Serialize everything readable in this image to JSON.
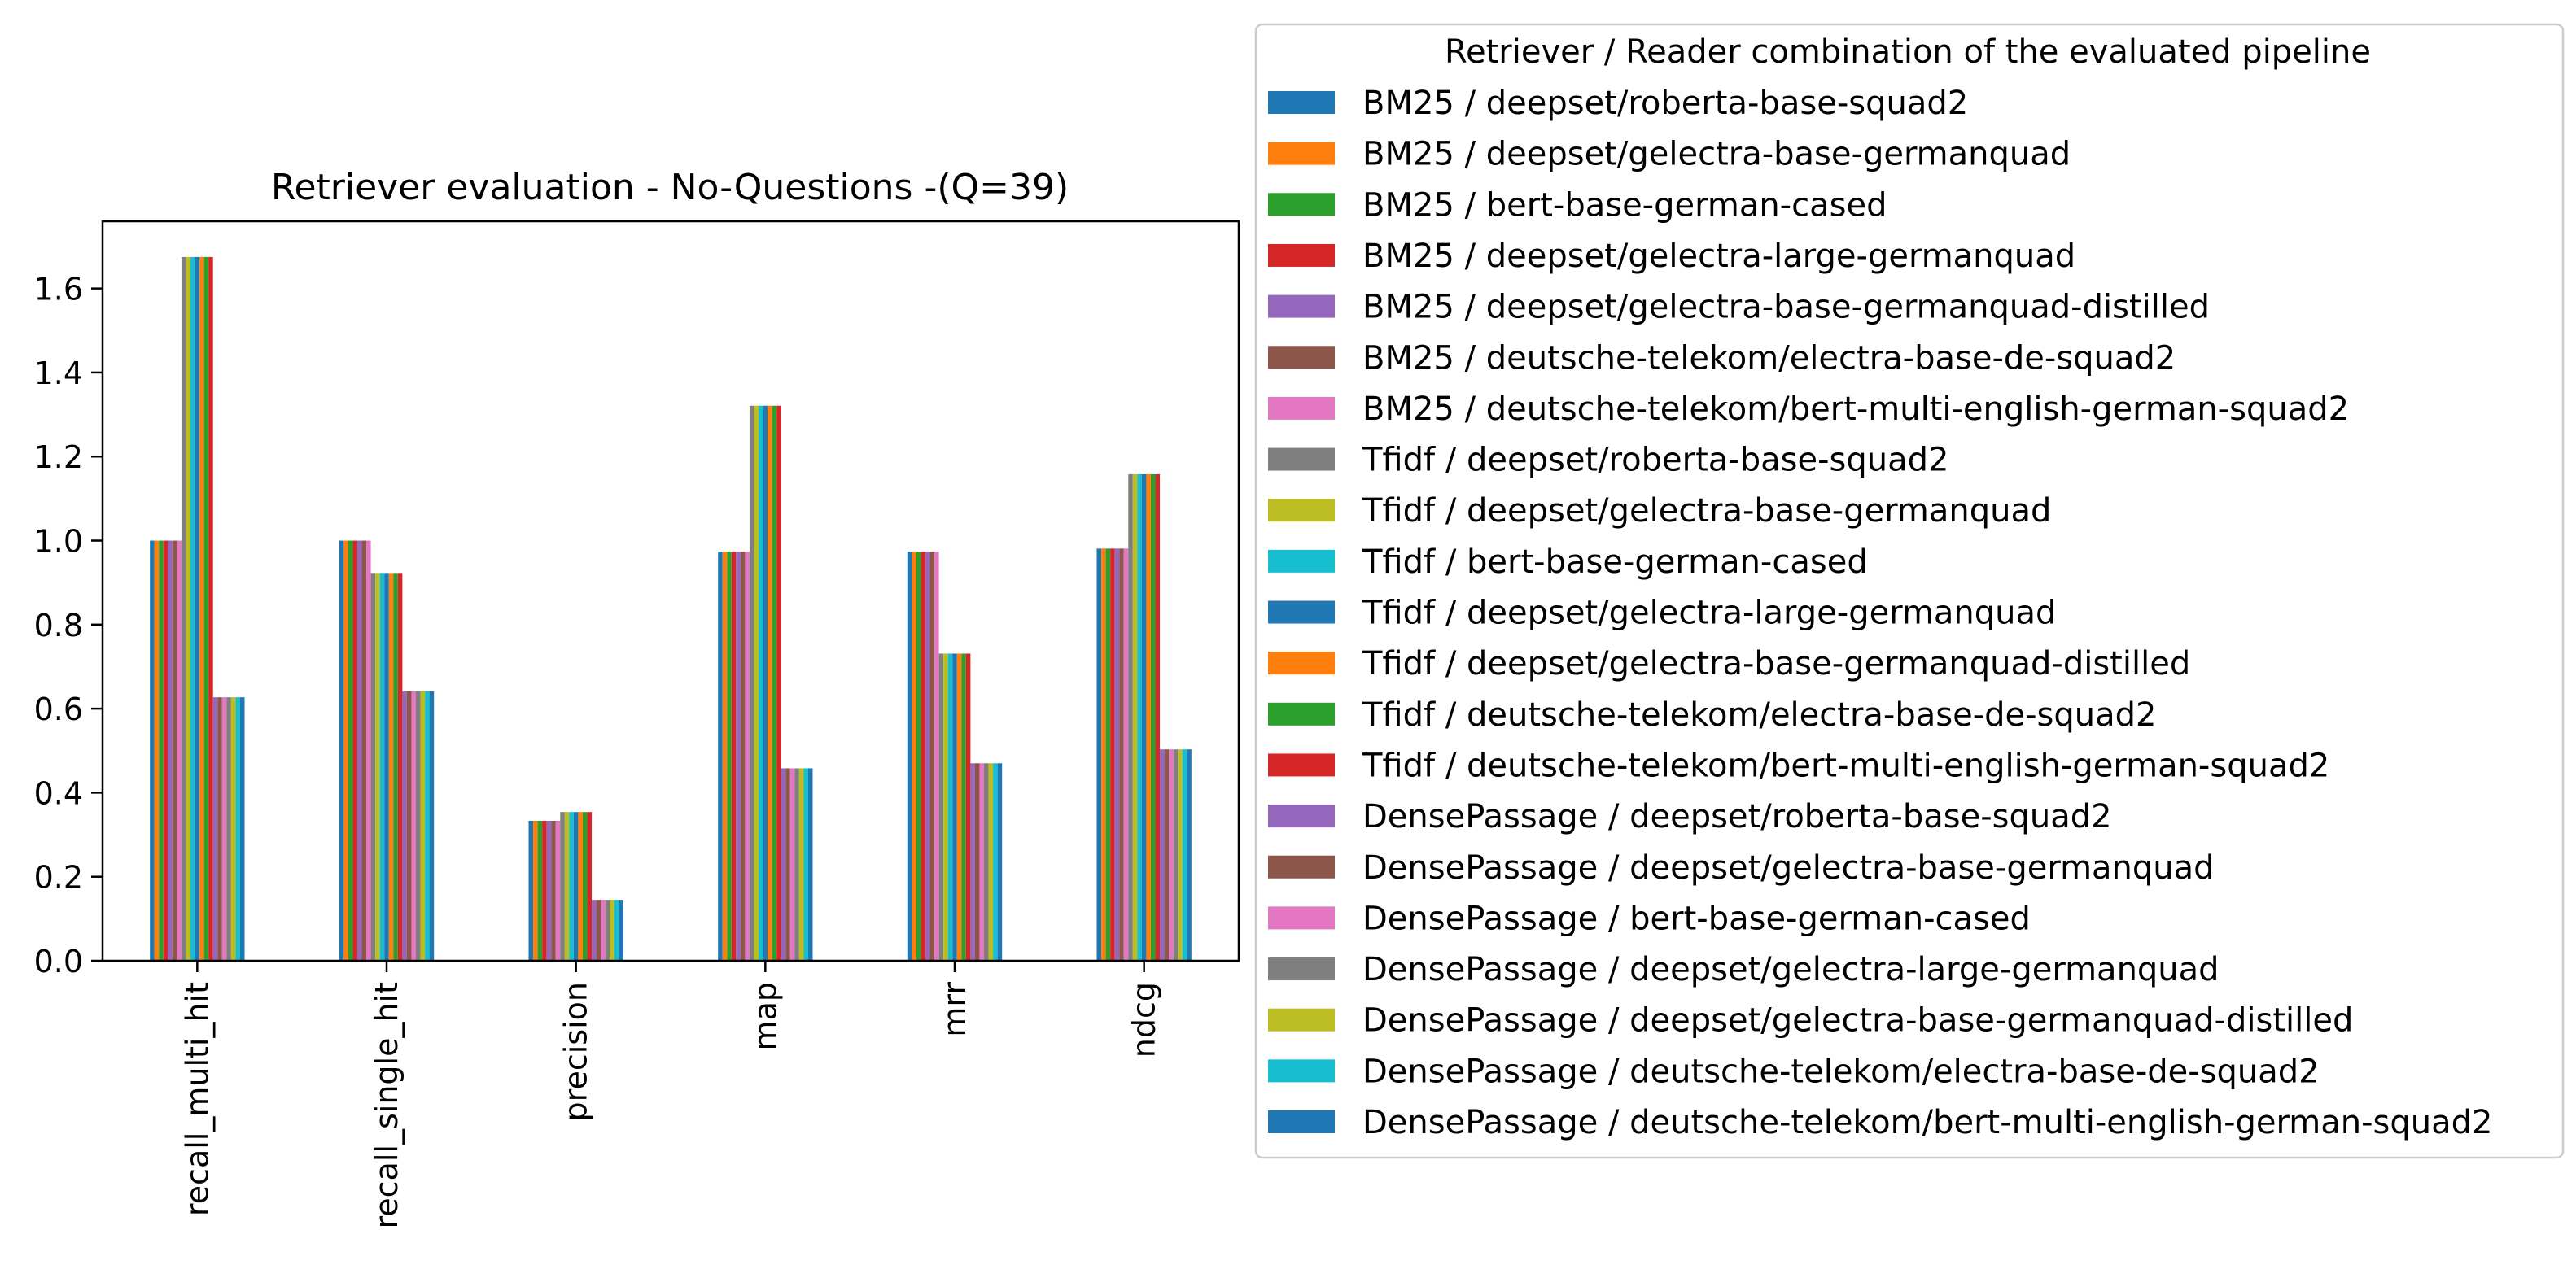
{
  "chart_data": {
    "type": "bar",
    "title": "Retriever evaluation - No-Questions -(Q=39)",
    "xlabel": "",
    "ylabel": "",
    "ylim": [
      0,
      1.76
    ],
    "yticks": [
      "0.0",
      "0.2",
      "0.4",
      "0.6",
      "0.8",
      "1.0",
      "1.2",
      "1.4",
      "1.6"
    ],
    "grid": false,
    "legend_title": "Retriever / Reader combination of the evaluated pipeline",
    "legend_position": "outside-right",
    "categories": [
      "recall_multi_hit",
      "recall_single_hit",
      "precision",
      "map",
      "mrr",
      "ndcg"
    ],
    "series": [
      {
        "name": "BM25 / deepset/roberta-base-squad2",
        "color": "#1f77b4",
        "values": [
          1.0,
          1.0,
          0.333,
          0.974,
          0.974,
          0.981
        ]
      },
      {
        "name": "BM25 / deepset/gelectra-base-germanquad",
        "color": "#ff7f0e",
        "values": [
          1.0,
          1.0,
          0.333,
          0.974,
          0.974,
          0.981
        ]
      },
      {
        "name": "BM25 / bert-base-german-cased",
        "color": "#2ca02c",
        "values": [
          1.0,
          1.0,
          0.333,
          0.974,
          0.974,
          0.981
        ]
      },
      {
        "name": "BM25 / deepset/gelectra-large-germanquad",
        "color": "#d62728",
        "values": [
          1.0,
          1.0,
          0.333,
          0.974,
          0.974,
          0.981
        ]
      },
      {
        "name": "BM25 / deepset/gelectra-base-germanquad-distilled",
        "color": "#9467bd",
        "values": [
          1.0,
          1.0,
          0.333,
          0.974,
          0.974,
          0.981
        ]
      },
      {
        "name": "BM25 / deutsche-telekom/electra-base-de-squad2",
        "color": "#8c564b",
        "values": [
          1.0,
          1.0,
          0.333,
          0.974,
          0.974,
          0.981
        ]
      },
      {
        "name": "BM25 / deutsche-telekom/bert-multi-english-german-squad2",
        "color": "#e377c2",
        "values": [
          1.0,
          1.0,
          0.333,
          0.974,
          0.974,
          0.981
        ]
      },
      {
        "name": "Tfidf / deepset/roberta-base-squad2",
        "color": "#7f7f7f",
        "values": [
          1.675,
          0.923,
          0.354,
          1.321,
          0.731,
          1.158
        ]
      },
      {
        "name": "Tfidf / deepset/gelectra-base-germanquad",
        "color": "#bcbd22",
        "values": [
          1.675,
          0.923,
          0.354,
          1.321,
          0.731,
          1.158
        ]
      },
      {
        "name": "Tfidf / bert-base-german-cased",
        "color": "#17becf",
        "values": [
          1.675,
          0.923,
          0.354,
          1.321,
          0.731,
          1.158
        ]
      },
      {
        "name": "Tfidf / deepset/gelectra-large-germanquad",
        "color": "#1f77b4",
        "values": [
          1.675,
          0.923,
          0.354,
          1.321,
          0.731,
          1.158
        ]
      },
      {
        "name": "Tfidf / deepset/gelectra-base-germanquad-distilled",
        "color": "#ff7f0e",
        "values": [
          1.675,
          0.923,
          0.354,
          1.321,
          0.731,
          1.158
        ]
      },
      {
        "name": "Tfidf / deutsche-telekom/electra-base-de-squad2",
        "color": "#2ca02c",
        "values": [
          1.675,
          0.923,
          0.354,
          1.321,
          0.731,
          1.158
        ]
      },
      {
        "name": "Tfidf / deutsche-telekom/bert-multi-english-german-squad2",
        "color": "#d62728",
        "values": [
          1.675,
          0.923,
          0.354,
          1.321,
          0.731,
          1.158
        ]
      },
      {
        "name": "DensePassage / deepset/roberta-base-squad2",
        "color": "#9467bd",
        "values": [
          0.627,
          0.641,
          0.145,
          0.458,
          0.47,
          0.503
        ]
      },
      {
        "name": "DensePassage / deepset/gelectra-base-germanquad",
        "color": "#8c564b",
        "values": [
          0.627,
          0.641,
          0.145,
          0.458,
          0.47,
          0.503
        ]
      },
      {
        "name": "DensePassage / bert-base-german-cased",
        "color": "#e377c2",
        "values": [
          0.627,
          0.641,
          0.145,
          0.458,
          0.47,
          0.503
        ]
      },
      {
        "name": "DensePassage / deepset/gelectra-large-germanquad",
        "color": "#7f7f7f",
        "values": [
          0.627,
          0.641,
          0.145,
          0.458,
          0.47,
          0.503
        ]
      },
      {
        "name": "DensePassage / deepset/gelectra-base-germanquad-distilled",
        "color": "#bcbd22",
        "values": [
          0.627,
          0.641,
          0.145,
          0.458,
          0.47,
          0.503
        ]
      },
      {
        "name": "DensePassage / deutsche-telekom/electra-base-de-squad2",
        "color": "#17becf",
        "values": [
          0.627,
          0.641,
          0.145,
          0.458,
          0.47,
          0.503
        ]
      },
      {
        "name": "DensePassage / deutsche-telekom/bert-multi-english-german-squad2",
        "color": "#1f77b4",
        "values": [
          0.627,
          0.641,
          0.145,
          0.458,
          0.47,
          0.503
        ]
      }
    ]
  }
}
